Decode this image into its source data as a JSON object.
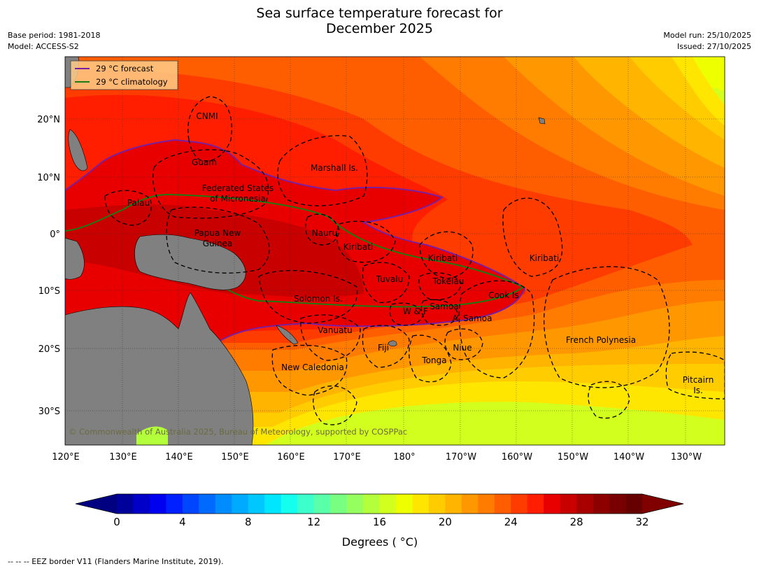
{
  "title_line1": "Sea surface temperature forecast for",
  "title_line2": "December 2025",
  "meta_left": {
    "base_period": "Base period: 1981-2018",
    "model": "Model: ACCESS-S2"
  },
  "meta_right": {
    "model_run": "Model run: 25/10/2025",
    "issued": "Issued: 27/10/2025"
  },
  "legend": {
    "forecast_label": "29 °C  forecast",
    "climatology_label": "29 °C  climatology",
    "forecast_color": "#7a1fa2",
    "climatology_color": "#1e7a12"
  },
  "lat_labels": [
    "20°N",
    "10°N",
    "0°",
    "10°S",
    "20°S",
    "30°S"
  ],
  "lon_labels": [
    "120°E",
    "130°E",
    "140°E",
    "150°E",
    "160°E",
    "170°E",
    "180°",
    "170°W",
    "160°W",
    "150°W",
    "140°W",
    "130°W"
  ],
  "regions": [
    "CNMI",
    "Guam",
    "Marshall Is.",
    "Federated States",
    "of Micronesia",
    "Palau",
    "Nauru",
    "Papua New",
    "Guinea",
    "Kiribati",
    "Kiribati",
    "Kiribati",
    "Tuvalu",
    "Tokelau",
    "Cook Is",
    "Solomon Is.",
    "W & F",
    "Samoa",
    "A. Samoa",
    "Vanuatu",
    "Fiji",
    "Niue",
    "Tonga",
    "French Polynesia",
    "New Caledonia",
    "Pitcairn",
    "Is."
  ],
  "copyright": "© Commonwealth of Australia 2025, Bureau of Meteorology, supported by COSPPac",
  "colorbar": {
    "ticks": [
      "0",
      "4",
      "8",
      "12",
      "16",
      "20",
      "24",
      "28",
      "32"
    ],
    "label": "Degrees ( °C)",
    "min": 0,
    "max": 32,
    "step": 1,
    "colors": [
      "#00009a",
      "#0000c8",
      "#0000f0",
      "#0020ff",
      "#0046ff",
      "#006aff",
      "#008cff",
      "#00aaff",
      "#00c8ff",
      "#00e6ff",
      "#14ffee",
      "#3cffcc",
      "#5affaa",
      "#78ff82",
      "#96ff60",
      "#b4ff3c",
      "#d2ff1e",
      "#eeff00",
      "#ffe600",
      "#ffcc00",
      "#ffb400",
      "#ff9800",
      "#ff7c00",
      "#ff5e00",
      "#ff3c00",
      "#ff1e00",
      "#e80000",
      "#c80000",
      "#a80000",
      "#8c0000",
      "#780000",
      "#660000"
    ],
    "under_color": "#000080",
    "over_color": "#800000"
  },
  "footnote": "--  --  -- EEZ border V11 (Flanders Marine Institute, 2019)."
}
